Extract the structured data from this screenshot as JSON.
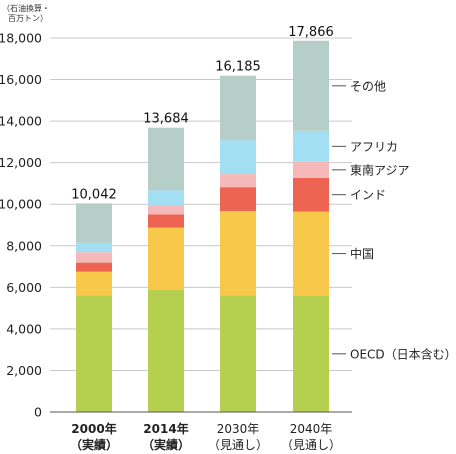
{
  "chart_data": {
    "type": "bar",
    "stacked": true,
    "unit_label": [
      "（石油換算・",
      "百万トン）"
    ],
    "ylim": [
      0,
      18000
    ],
    "yticks": [
      0,
      2000,
      4000,
      6000,
      8000,
      10000,
      12000,
      14000,
      16000,
      18000
    ],
    "ytick_labels": [
      "0",
      "2,000",
      "4,000",
      "6,000",
      "8,000",
      "10,000",
      "12,000",
      "14,000",
      "16,000",
      "18,000"
    ],
    "grid": true,
    "categories": [
      {
        "line1": "2000年",
        "line2": "（実績）",
        "bold": true
      },
      {
        "line1": "2014年",
        "line2": "（実績）",
        "bold": true
      },
      {
        "line1": "2030年",
        "line2": "（見通し）",
        "bold": false
      },
      {
        "line1": "2040年",
        "line2": "（見通し）",
        "bold": false
      }
    ],
    "totals": [
      10042,
      13684,
      16185,
      17866
    ],
    "total_labels": [
      "10,042",
      "13,684",
      "16,185",
      "17,866"
    ],
    "series": [
      {
        "name": "OECD（日本含む）",
        "color": "#b5cf4e",
        "values": [
          5620,
          5870,
          5620,
          5600
        ]
      },
      {
        "name": "中国",
        "color": "#f7c84a",
        "values": [
          1130,
          3000,
          4050,
          4050
        ]
      },
      {
        "name": "インド",
        "color": "#ee6452",
        "values": [
          440,
          640,
          1150,
          1620
        ]
      },
      {
        "name": "東南アジア",
        "color": "#f6b9b9",
        "values": [
          500,
          450,
          630,
          770
        ]
      },
      {
        "name": "アフリカ",
        "color": "#a3dff2",
        "values": [
          460,
          710,
          1630,
          1490
        ]
      },
      {
        "name": "その他",
        "color": "#b5cec8",
        "values": [
          1892,
          3014,
          3105,
          4336
        ]
      }
    ],
    "legend_placement": "right"
  }
}
